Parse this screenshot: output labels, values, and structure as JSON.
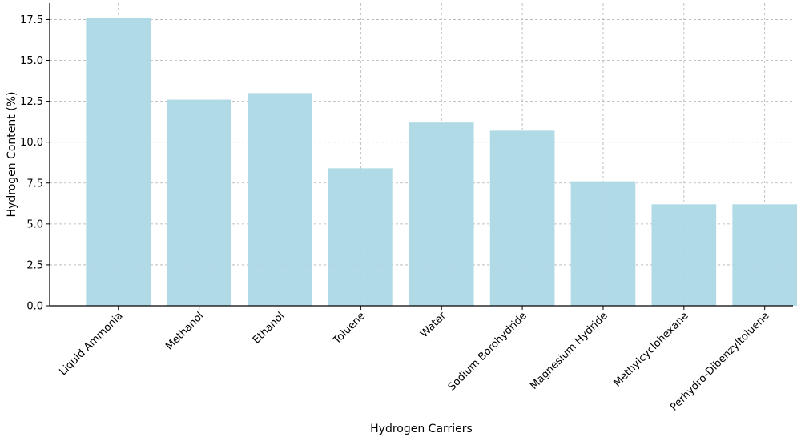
{
  "chart_data": {
    "type": "bar",
    "title": "",
    "xlabel": "Hydrogen Carriers",
    "ylabel": "Hydrogen Content (%)",
    "categories": [
      "Liquid Ammonia",
      "Methanol",
      "Ethanol",
      "Toluene",
      "Water",
      "Sodium Borohydride",
      "Magnesium Hydride",
      "Methylcyclohexane",
      "Perhydro-Dibenzyltoluene"
    ],
    "values": [
      17.6,
      12.6,
      13.0,
      8.4,
      11.2,
      10.7,
      7.6,
      6.2,
      6.2
    ],
    "ylim": [
      0,
      18.5
    ],
    "yticks": [
      0,
      2.5,
      5,
      7.5,
      10,
      12.5,
      15,
      17.5
    ],
    "ytick_labels": [
      "0.0",
      "2.5",
      "5.0",
      "7.5",
      "10.0",
      "12.5",
      "15.0",
      "17.5"
    ],
    "grid": true,
    "legend": "none",
    "bar_color": "#add8e6"
  }
}
